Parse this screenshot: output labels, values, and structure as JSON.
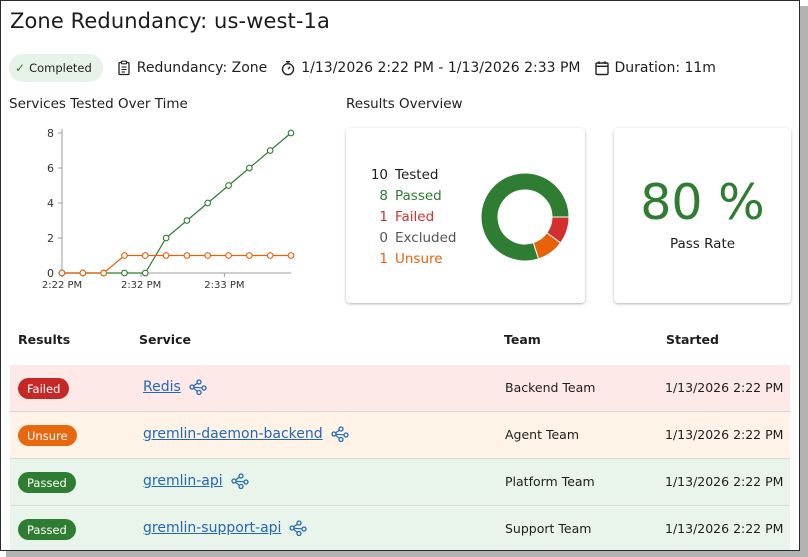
{
  "page": {
    "title": "Zone Redundancy: us-west-1a"
  },
  "meta": {
    "status": "Completed",
    "redundancy": "Redundancy: Zone",
    "time_range": "1/13/2026 2:22 PM - 1/13/2026 2:33 PM",
    "duration": "Duration: 11m"
  },
  "sections": {
    "services_over_time": "Services Tested Over Time",
    "results_overview": "Results Overview"
  },
  "chart_data": {
    "type": "line",
    "title": "Services Tested Over Time",
    "x_tick_labels": [
      "2:22 PM",
      "2:32 PM",
      "2:33 PM"
    ],
    "y_tick_labels": [
      "0",
      "2",
      "4",
      "6",
      "8"
    ],
    "ylim": [
      0,
      8
    ],
    "grid": false,
    "series": [
      {
        "color": "#2e7d32",
        "points": [
          [
            0,
            0
          ],
          [
            1,
            0
          ],
          [
            2,
            0
          ],
          [
            3,
            0
          ],
          [
            4,
            0
          ],
          [
            5,
            2
          ],
          [
            6,
            3
          ],
          [
            7,
            4
          ],
          [
            8,
            5
          ],
          [
            9,
            6
          ],
          [
            10,
            7
          ],
          [
            11,
            8
          ]
        ]
      },
      {
        "color": "#e8620c",
        "points": [
          [
            0,
            0
          ],
          [
            1,
            0
          ],
          [
            2,
            0
          ],
          [
            3,
            1
          ],
          [
            4,
            1
          ],
          [
            5,
            1
          ],
          [
            6,
            1
          ],
          [
            7,
            1
          ],
          [
            8,
            1
          ],
          [
            9,
            1
          ],
          [
            10,
            1
          ],
          [
            11,
            1
          ]
        ]
      }
    ]
  },
  "overview": {
    "stats": [
      {
        "key": "tested",
        "value": "10",
        "label": "Tested"
      },
      {
        "key": "passed",
        "value": "8",
        "label": "Passed"
      },
      {
        "key": "failed",
        "value": "1",
        "label": "Failed"
      },
      {
        "key": "excluded",
        "value": "0",
        "label": "Excluded"
      },
      {
        "key": "unsure",
        "value": "1",
        "label": "Unsure"
      }
    ],
    "donut": [
      {
        "name": "Passed",
        "value": 8,
        "color": "#2e7d32"
      },
      {
        "name": "Failed",
        "value": 1,
        "color": "#d32f2f"
      },
      {
        "name": "Unsure",
        "value": 1,
        "color": "#e8620c"
      }
    ]
  },
  "pass_rate": {
    "value": "80 %",
    "label": "Pass Rate"
  },
  "table": {
    "headers": [
      "Results",
      "Service",
      "Team",
      "Started"
    ],
    "rows": [
      {
        "result": "Failed",
        "service": "Redis",
        "team": "Backend Team",
        "started": "1/13/2026 2:22 PM"
      },
      {
        "result": "Unsure",
        "service": "gremlin-daemon-backend",
        "team": "Agent Team",
        "started": "1/13/2026 2:22 PM"
      },
      {
        "result": "Passed",
        "service": "gremlin-api",
        "team": "Platform Team",
        "started": "1/13/2026 2:22 PM"
      },
      {
        "result": "Passed",
        "service": "gremlin-support-api",
        "team": "Support Team",
        "started": "1/13/2026 2:22 PM"
      }
    ]
  }
}
